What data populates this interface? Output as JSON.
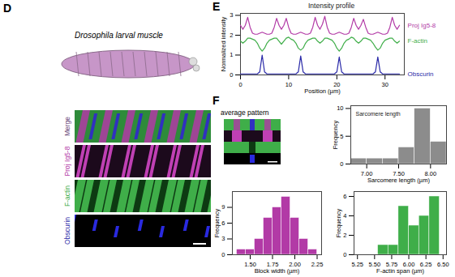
{
  "figure": {
    "panel_labels": [
      "D",
      "E",
      "F"
    ],
    "larva_caption": "Drosophila larval muscle",
    "channels": [
      {
        "name": "Merge",
        "color": "#6b4a7a"
      },
      {
        "name": "Proj Ig5-8",
        "color": "#b23aa6"
      },
      {
        "name": "F-actin",
        "color": "#3fae49"
      },
      {
        "name": "Obscurin",
        "color": "#2a2aa8"
      }
    ],
    "average_pattern_label": "average pattern"
  },
  "chart_data": [
    {
      "type": "line",
      "title": "Intensity profile",
      "xlabel": "Position (µm)",
      "ylabel": "Normalized intensity",
      "xlim": [
        0,
        34
      ],
      "xticks": [
        0,
        10,
        20,
        30
      ],
      "ylim": [
        0,
        3.1
      ],
      "yticks": [
        0,
        1,
        2,
        3
      ],
      "x": [
        0,
        0.5,
        1,
        1.5,
        2,
        2.5,
        3,
        3.5,
        4,
        4.5,
        5,
        5.5,
        6,
        6.5,
        7,
        7.5,
        8,
        8.5,
        9,
        9.5,
        10,
        10.5,
        11,
        11.5,
        12,
        12.5,
        13,
        13.5,
        14,
        14.5,
        15,
        15.5,
        16,
        16.5,
        17,
        17.5,
        18,
        18.5,
        19,
        19.5,
        20,
        20.5,
        21,
        21.5,
        22,
        22.5,
        23,
        23.5,
        24,
        24.5,
        25,
        25.5,
        26,
        26.5,
        27,
        27.5,
        28,
        28.5,
        29,
        29.5,
        30,
        30.5,
        31,
        31.5,
        32,
        32.5,
        33
      ],
      "series": [
        {
          "name": "Proj Ig5-8",
          "color": "#b23aa6",
          "values": [
            2.5,
            2.3,
            2.5,
            2.9,
            2.4,
            2.1,
            2.05,
            2.05,
            2.1,
            2.15,
            2.1,
            2.05,
            2.05,
            2.1,
            2.4,
            2.85,
            2.5,
            2.3,
            2.5,
            2.85,
            2.4,
            2.1,
            2.05,
            2.05,
            2.1,
            2.15,
            2.1,
            2.05,
            2.05,
            2.1,
            2.4,
            2.9,
            2.5,
            2.3,
            2.55,
            2.95,
            2.4,
            2.1,
            2.05,
            2.05,
            2.1,
            2.15,
            2.1,
            2.05,
            2.05,
            2.1,
            2.4,
            2.85,
            2.5,
            2.3,
            2.5,
            2.8,
            2.4,
            2.1,
            2.05,
            2.05,
            2.1,
            2.15,
            2.1,
            2.05,
            2.05,
            2.1,
            2.4,
            2.9,
            2.5,
            2.3,
            2.5
          ]
        },
        {
          "name": "F-actin",
          "color": "#3fae49",
          "values": [
            1.7,
            1.6,
            1.7,
            1.85,
            1.85,
            1.8,
            1.75,
            1.6,
            1.35,
            1.2,
            1.35,
            1.6,
            1.75,
            1.8,
            1.85,
            1.85,
            1.7,
            1.55,
            1.7,
            1.85,
            1.9,
            1.8,
            1.75,
            1.6,
            1.35,
            1.25,
            1.35,
            1.6,
            1.75,
            1.8,
            1.85,
            1.85,
            1.7,
            1.6,
            1.7,
            1.85,
            1.85,
            1.8,
            1.75,
            1.6,
            1.35,
            1.2,
            1.35,
            1.6,
            1.75,
            1.8,
            1.9,
            1.85,
            1.7,
            1.6,
            1.7,
            1.85,
            1.85,
            1.8,
            1.75,
            1.6,
            1.4,
            1.25,
            1.35,
            1.6,
            1.75,
            1.8,
            1.85,
            1.85,
            1.7,
            1.6,
            1.7
          ]
        },
        {
          "name": "Obscurin",
          "color": "#2a2aa8",
          "values": [
            0.05,
            0.05,
            0.05,
            0.05,
            0.05,
            0.05,
            0.05,
            0.05,
            0.15,
            1.0,
            0.15,
            0.05,
            0.05,
            0.05,
            0.05,
            0.05,
            0.05,
            0.05,
            0.05,
            0.05,
            0.05,
            0.05,
            0.05,
            0.05,
            0.15,
            0.95,
            0.15,
            0.05,
            0.05,
            0.05,
            0.05,
            0.05,
            0.05,
            0.05,
            0.05,
            0.05,
            0.05,
            0.05,
            0.05,
            0.05,
            0.15,
            0.9,
            0.15,
            0.05,
            0.05,
            0.05,
            0.05,
            0.05,
            0.05,
            0.05,
            0.05,
            0.05,
            0.05,
            0.05,
            0.05,
            0.05,
            0.15,
            0.9,
            0.15,
            0.05,
            0.05,
            0.05,
            0.05,
            0.05,
            0.05,
            0.05,
            0.05
          ]
        }
      ]
    },
    {
      "type": "histogram",
      "xlabel": "Sarcomere length (µm)",
      "ylabel": "Frequency",
      "inset_label": "Sarcomere length",
      "color": "#8c8c8c",
      "bins": [
        6.75,
        7,
        7.25,
        7.5,
        7.75,
        8,
        8.25
      ],
      "counts": [
        1,
        1,
        1,
        3,
        10,
        4
      ],
      "xlim": [
        6.75,
        8.25
      ],
      "xticks": [
        {
          "value": 7,
          "label": "7.00"
        },
        {
          "value": 7.5,
          "label": "7.50"
        },
        {
          "value": 8,
          "label": "8.00"
        }
      ],
      "ylim": [
        0,
        10.5
      ],
      "yticks": [
        0,
        5,
        10
      ]
    },
    {
      "type": "histogram",
      "xlabel": "Block width (µm)",
      "ylabel": "Frequency",
      "color": "#b23aa6",
      "bins": [
        1.35,
        1.45,
        1.55,
        1.65,
        1.75,
        1.85,
        1.95,
        2.05,
        2.15,
        2.25
      ],
      "counts": [
        1,
        1,
        3,
        7,
        9,
        11,
        7,
        3,
        1
      ],
      "xlim": [
        1.3,
        2.3
      ],
      "xticks": [
        {
          "value": 1.5,
          "label": "1.50"
        },
        {
          "value": 1.75,
          "label": "1.75"
        },
        {
          "value": 2,
          "label": "2.00"
        },
        {
          "value": 2.25,
          "label": "2.25"
        }
      ],
      "ylim": [
        0,
        12
      ],
      "yticks": [
        0,
        3,
        6,
        9
      ]
    },
    {
      "type": "histogram",
      "xlabel": "F-actin span (µm)",
      "ylabel": "Frequency",
      "color": "#3fae49",
      "bins": [
        5.55,
        5.7,
        5.85,
        6,
        6.15,
        6.3,
        6.45
      ],
      "counts": [
        1,
        1,
        5,
        3,
        4,
        6
      ],
      "xlim": [
        5.2,
        6.55
      ],
      "xticks": [
        {
          "value": 5.25,
          "label": "5.25"
        },
        {
          "value": 5.5,
          "label": "5.50"
        },
        {
          "value": 5.75,
          "label": "5.75"
        },
        {
          "value": 6,
          "label": "6.00"
        },
        {
          "value": 6.25,
          "label": "6.25"
        },
        {
          "value": 6.5,
          "label": "6.50"
        }
      ],
      "ylim": [
        0,
        6.5
      ],
      "yticks": [
        0,
        2,
        4,
        6
      ]
    }
  ]
}
